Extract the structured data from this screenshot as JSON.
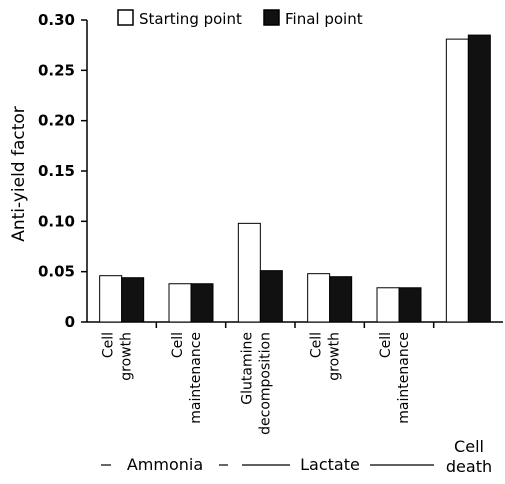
{
  "chart_data": {
    "type": "bar",
    "ylabel": "Anti-yield factor",
    "ylim": [
      0,
      0.3
    ],
    "yticks": [
      {
        "value": 0,
        "label": "0"
      },
      {
        "value": 0.05,
        "label": "0.05"
      },
      {
        "value": 0.1,
        "label": "0.10"
      },
      {
        "value": 0.15,
        "label": "0.15"
      },
      {
        "value": 0.2,
        "label": "0.20"
      },
      {
        "value": 0.25,
        "label": "0.25"
      },
      {
        "value": 0.3,
        "label": "0.30"
      }
    ],
    "categories": [
      [
        "Cell",
        "growth"
      ],
      [
        "Cell",
        "maintenance"
      ],
      [
        "Glutamine",
        "decomposition"
      ],
      [
        "Cell",
        "growth"
      ],
      [
        "Cell",
        "maintenance"
      ],
      []
    ],
    "groups": [
      "Ammonia",
      "Lactate",
      "Cell\ndeath"
    ],
    "series": [
      {
        "name": "Starting point",
        "color": "#ffffff",
        "values": [
          0.046,
          0.038,
          0.098,
          0.048,
          0.034,
          0.281
        ]
      },
      {
        "name": "Final point",
        "color": "#111111",
        "values": [
          0.044,
          0.038,
          0.051,
          0.045,
          0.034,
          0.285
        ]
      }
    ],
    "legend_position": "top",
    "grid": false
  }
}
